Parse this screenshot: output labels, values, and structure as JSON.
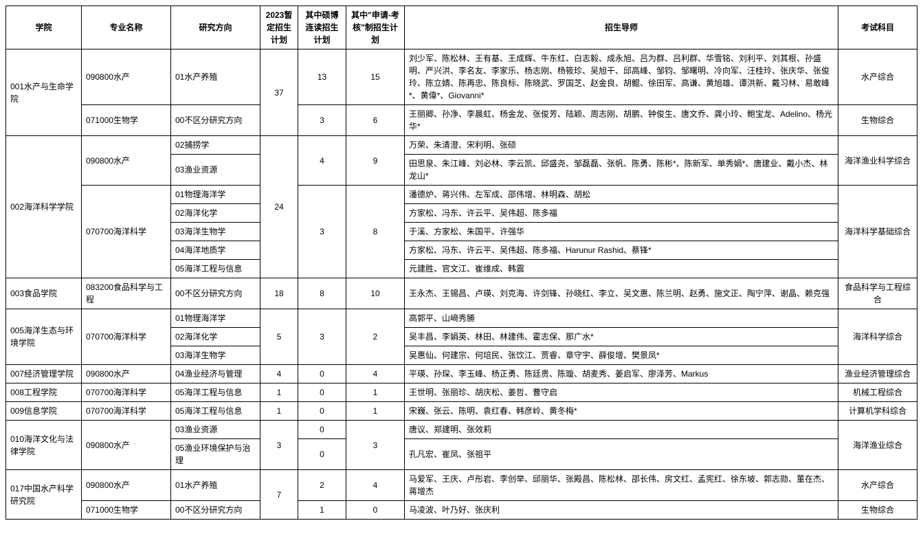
{
  "headers": {
    "college": "学院",
    "major": "专业名称",
    "direction": "研究方向",
    "plan1": "2023暂定招生计划",
    "plan2": "其中硕博连读招生计划",
    "plan3": "其中\"申请-考核\"制招生计划",
    "advisors": "招生导师",
    "subject": "考试科目"
  },
  "rows": [
    {
      "college": "001水产与生命学院",
      "major": "090800水产",
      "direction": "01水产养殖",
      "plan1": "37",
      "plan2": "13",
      "plan3": "15",
      "advisors": "刘少军、陈松林、王有基、王成辉、牛东红、白志毅、成永旭、吕为群、吕利群、华雪铭、刘利平、刘其根、孙盛明、严兴洪、李名友、李家乐、杨志刚、杨筱珍、吴旭干、邱高峰、邹钧、邹曙明、冷向军、汪桂玲、张庆华、张俊玲、陈立婧、陈再忠、陈良标、陈晓武、罗国芝、赵金良、胡鲲、徐田军、高谦、黄旭雄、谭洪新、戴习林、易敢峰*、黄偉*、Giovanni*",
      "subject": "水产综合"
    },
    {
      "college": "",
      "major": "071000生物学",
      "direction": "00不区分研究方向",
      "plan1": "",
      "plan2": "3",
      "plan3": "6",
      "advisors": "王丽卿、孙净、李晨虹、杨金龙、张俊芳、陆颖、周志刚、胡鹏、钟俊生、唐文乔、龚小玲、鲍宝龙、Adelino、杨光华*",
      "subject": "生物综合"
    },
    {
      "college": "002海洋科学学院",
      "major": "090800水产",
      "direction": "02捕捞学",
      "plan1": "24",
      "plan2": "4",
      "plan3": "9",
      "advisors": "万荣、朱清澄、宋利明、张硕",
      "subject": "海洋渔业科学综合"
    },
    {
      "college": "",
      "major": "",
      "direction": "03渔业资源",
      "plan1": "",
      "plan2": "",
      "plan3": "",
      "advisors": "田思泉、朱江峰、刘必林、李云凯、邱盛尧、邹磊磊、张帆、陈勇、陈彬*、陈新军、单秀娟*、唐建业、戴小杰、林龙山*",
      "subject": ""
    },
    {
      "college": "",
      "major": "070700海洋科学",
      "direction": "01物理海洋学",
      "plan1": "",
      "plan2": "3",
      "plan3": "8",
      "advisors": "潘德炉、蒋兴伟、左军成、邵伟增、林明森、胡松",
      "subject": "海洋科学基础综合"
    },
    {
      "college": "",
      "major": "",
      "direction": "02海洋化学",
      "plan1": "",
      "plan2": "",
      "plan3": "",
      "advisors": "方家松、冯东、许云平、吴伟超、陈多福",
      "subject": ""
    },
    {
      "college": "",
      "major": "",
      "direction": "03海洋生物学",
      "plan1": "",
      "plan2": "",
      "plan3": "",
      "advisors": "于溪、方家松、朱国平、许强华",
      "subject": ""
    },
    {
      "college": "",
      "major": "",
      "direction": "04海洋地质学",
      "plan1": "",
      "plan2": "",
      "plan3": "",
      "advisors": "方家松、冯东、许云平、吴伟超、陈多福、Harunur Rashid、蔡锋*",
      "subject": ""
    },
    {
      "college": "",
      "major": "",
      "direction": "05海洋工程与信息",
      "plan1": "",
      "plan2": "",
      "plan3": "",
      "advisors": "元建胜、官文江、崔维成、韩震",
      "subject": ""
    },
    {
      "college": "003食品学院",
      "major": "083200食品科学与工程",
      "direction": "00不区分研究方向",
      "plan1": "18",
      "plan2": "8",
      "plan3": "10",
      "advisors": "王永杰、王锡昌、卢瑛、刘克海、许剑锋、孙晓红、李立、吴文惠、陈兰明、赵勇、施文正、陶宁萍、谢晶、赖克强",
      "subject": "食品科学与工程综合"
    },
    {
      "college": "005海洋生态与环境学院",
      "major": "070700海洋科学",
      "direction": "01物理海洋学",
      "plan1": "5",
      "plan2": "3",
      "plan3": "2",
      "advisors": "高郭平、山﨑秀勝",
      "subject": "海洋科学综合"
    },
    {
      "college": "",
      "major": "",
      "direction": "02海洋化学",
      "plan1": "",
      "plan2": "",
      "plan3": "",
      "advisors": "吴丰昌、李娟英、林田、林建伟、霍志保、那广水*",
      "subject": ""
    },
    {
      "college": "",
      "major": "",
      "direction": "03海洋生物学",
      "plan1": "",
      "plan2": "",
      "plan3": "",
      "advisors": "吴惠仙、何建宗、何培民、张饮江、贾睿、章守宇、薛俊增、樊景凤*",
      "subject": ""
    },
    {
      "college": "007经济管理学院",
      "major": "090800水产",
      "direction": "04渔业经济与管理",
      "plan1": "4",
      "plan2": "0",
      "plan3": "4",
      "advisors": "平瑛、孙琛、李玉峰、杨正勇、陈廷贵、陈璇、胡麦秀、姜启军、廖泽芳、Markus",
      "subject": "渔业经济管理综合"
    },
    {
      "college": "008工程学院",
      "major": "070700海洋科学",
      "direction": "05海洋工程与信息",
      "plan1": "1",
      "plan2": "0",
      "plan3": "1",
      "advisors": "王世明、张丽珍、胡庆松、姜哲、曹守启",
      "subject": "机械工程综合"
    },
    {
      "college": "009信息学院",
      "major": "070700海洋科学",
      "direction": "05海洋工程与信息",
      "plan1": "1",
      "plan2": "0",
      "plan3": "1",
      "advisors": "宋巍、张云、陈明、袁红春、韩彦岭、黄冬梅*",
      "subject": "计算机学科综合"
    },
    {
      "college": "010海洋文化与法律学院",
      "major": "090800水产",
      "direction": "03渔业资源",
      "plan1": "3",
      "plan2": "0",
      "plan3": "3",
      "advisors": "唐议、郑建明、张效莉",
      "subject": "海洋渔业综合"
    },
    {
      "college": "",
      "major": "",
      "direction": "05渔业环境保护与治理",
      "plan1": "",
      "plan2": "0",
      "plan3": "",
      "advisors": "孔凡宏、崔凤、张祖平",
      "subject": ""
    },
    {
      "college": "017中国水产科学研究院",
      "major": "090800水产",
      "direction": "01水产养殖",
      "plan1": "7",
      "plan2": "2",
      "plan3": "4",
      "advisors": "马爱军、王庆、卢彤岩、李创举、邱丽华、张殿昌、陈松林、邵长伟、房文红、孟宪红、徐东坡、郭志勋、董在杰、蒋增杰",
      "subject": "水产综合"
    },
    {
      "college": "",
      "major": "071000生物学",
      "direction": "00不区分研究方向",
      "plan1": "",
      "plan2": "1",
      "plan3": "0",
      "advisors": "马凌波、叶乃好、张庆利",
      "subject": "生物综合"
    }
  ],
  "spans": {
    "college": [
      2,
      7,
      1,
      3,
      1,
      1,
      1,
      2,
      2
    ],
    "major": [
      1,
      1,
      2,
      5,
      1,
      3,
      1,
      1,
      1,
      2,
      1,
      1
    ],
    "plan1": [
      2,
      7,
      1,
      3,
      1,
      1,
      1,
      2,
      2
    ],
    "plan2": [
      1,
      1,
      2,
      5,
      1,
      3,
      1,
      1,
      1,
      1,
      1,
      1,
      1
    ],
    "plan3": [
      1,
      1,
      2,
      5,
      1,
      3,
      1,
      1,
      1,
      2,
      1,
      1
    ],
    "subject": [
      1,
      1,
      2,
      5,
      1,
      3,
      1,
      1,
      1,
      2,
      1,
      1
    ]
  }
}
